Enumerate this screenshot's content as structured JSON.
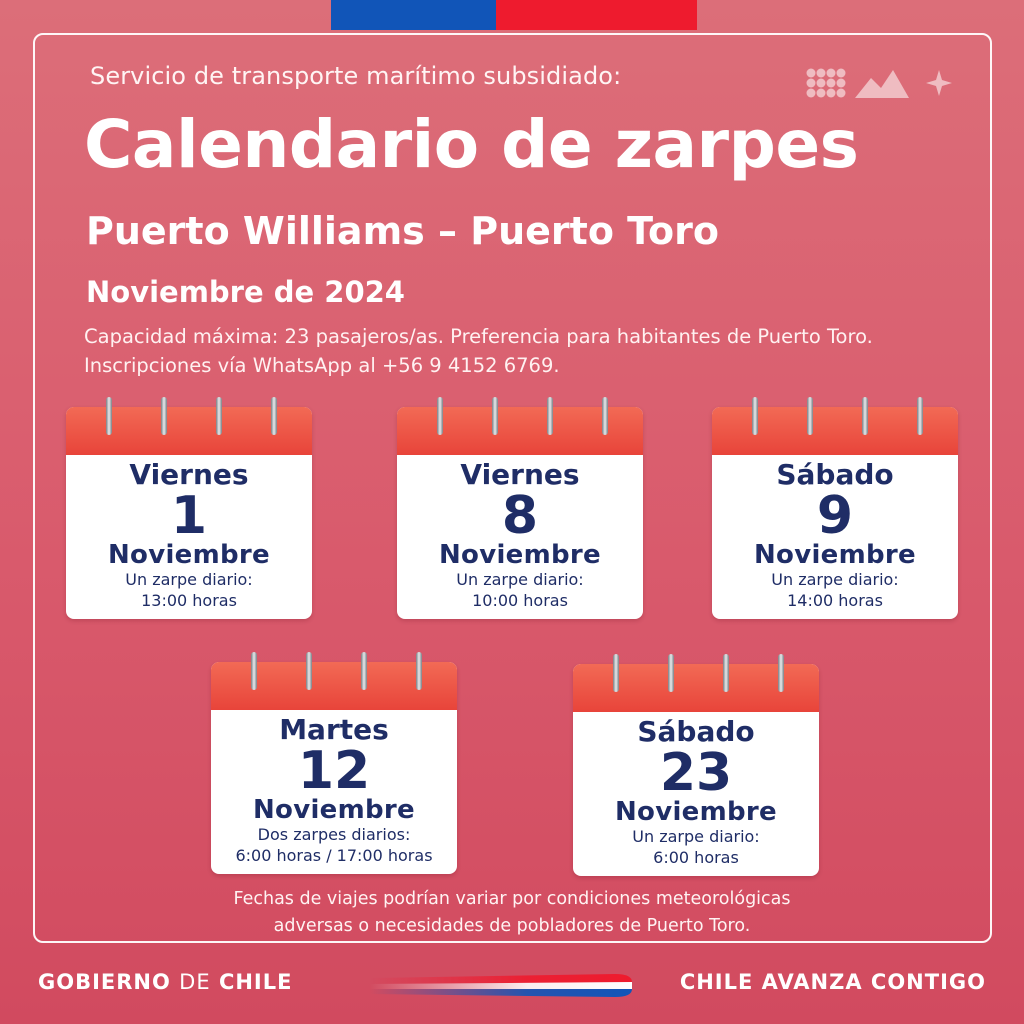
{
  "header": {
    "subtitle": "Servicio de transporte marítimo subsidiado:",
    "title": "Calendario de zarpes",
    "route": "Puerto Williams – Puerto Toro",
    "month": "Noviembre de 2024",
    "info_line1": "Capacidad máxima: 23 pasajeros/as. Preferencia para habitantes de Puerto Toro.",
    "info_line2": "Inscripciones vía WhatsApp al +56 9 4152 6769."
  },
  "dates": [
    {
      "day": "Viernes",
      "number": "1",
      "month": "Noviembre",
      "line1": "Un zarpe diario:",
      "line2": "13:00 horas"
    },
    {
      "day": "Viernes",
      "number": "8",
      "month": "Noviembre",
      "line1": "Un zarpe diario:",
      "line2": "10:00 horas"
    },
    {
      "day": "Sábado",
      "number": "9",
      "month": "Noviembre",
      "line1": "Un zarpe diario:",
      "line2": "14:00 horas"
    },
    {
      "day": "Martes",
      "number": "12",
      "month": "Noviembre",
      "line1": "Dos zarpes diarios:",
      "line2": "6:00 horas / 17:00 horas"
    },
    {
      "day": "Sábado",
      "number": "23",
      "month": "Noviembre",
      "line1": "Un zarpe diario:",
      "line2": "6:00 horas"
    }
  ],
  "note": {
    "line1": "Fechas de viajes podrían variar por condiciones meteorológicas",
    "line2": "adversas o necesidades de pobladores de Puerto Toro."
  },
  "footer": {
    "gov_bold1": "GOBIERNO",
    "gov_thin": "DE",
    "gov_bold2": "CHILE",
    "slogan": "CHILE AVANZA CONTIGO"
  },
  "colors": {
    "background": "#d95a6c",
    "flag_blue": "#1155b8",
    "flag_red": "#ee1b2e",
    "calendar_header": "#e8443a",
    "calendar_text": "#1f2d66"
  },
  "icons": {
    "logo": "dots-mountains-star-icon",
    "calendar": "calendar-icon"
  }
}
